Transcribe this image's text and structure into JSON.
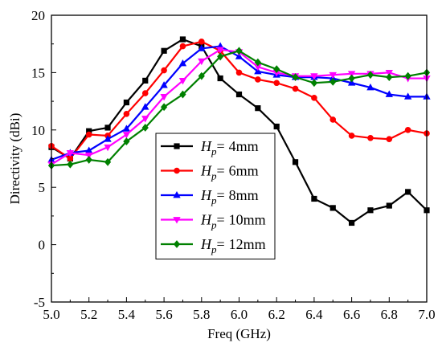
{
  "chart_data": {
    "type": "line",
    "title": "",
    "xlabel": "Freq (GHz)",
    "ylabel": "Directivity (dBi)",
    "xlim": [
      5.0,
      7.0
    ],
    "ylim": [
      -5,
      20
    ],
    "xticks": [
      "5.0",
      "5.2",
      "5.4",
      "5.6",
      "5.8",
      "6.0",
      "6.2",
      "6.4",
      "6.6",
      "6.8",
      "7.0"
    ],
    "yticks": [
      "-5",
      "0",
      "5",
      "10",
      "15",
      "20"
    ],
    "grid": false,
    "legend_position": "lower-center",
    "x": [
      5.0,
      5.1,
      5.2,
      5.3,
      5.4,
      5.5,
      5.6,
      5.7,
      5.8,
      5.9,
      6.0,
      6.1,
      6.2,
      6.3,
      6.4,
      6.5,
      6.6,
      6.7,
      6.8,
      6.9,
      7.0
    ],
    "series": [
      {
        "name": "4mm",
        "legend_var": "H",
        "legend_sub": "p",
        "legend_eq": "=",
        "color": "#000000",
        "marker": "square",
        "values": [
          8.5,
          7.5,
          9.9,
          10.2,
          12.4,
          14.3,
          16.9,
          17.9,
          17.3,
          14.5,
          13.1,
          11.9,
          10.3,
          7.2,
          4.0,
          3.2,
          1.9,
          3.0,
          3.4,
          4.6,
          3.0
        ]
      },
      {
        "name": "6mm",
        "legend_var": "H",
        "legend_sub": "p",
        "legend_eq": "=",
        "color": "#ff0000",
        "marker": "circle",
        "values": [
          8.6,
          7.5,
          9.6,
          9.5,
          11.4,
          13.2,
          15.2,
          17.3,
          17.7,
          16.9,
          15.0,
          14.4,
          14.1,
          13.6,
          12.8,
          10.9,
          9.5,
          9.3,
          9.2,
          10.0,
          9.7
        ]
      },
      {
        "name": "8mm",
        "legend_var": "H",
        "legend_sub": "p",
        "legend_eq": "=",
        "color": "#0000ff",
        "marker": "triangle-up",
        "values": [
          7.4,
          8.0,
          8.2,
          9.2,
          10.1,
          12.0,
          13.9,
          15.8,
          17.1,
          17.3,
          16.4,
          15.1,
          14.8,
          14.6,
          14.6,
          14.5,
          14.1,
          13.7,
          13.1,
          12.9,
          12.9
        ]
      },
      {
        "name": "10mm",
        "legend_var": "H",
        "legend_sub": "p",
        "legend_eq": "=",
        "color": "#ff00ff",
        "marker": "triangle-down",
        "values": [
          7.0,
          8.0,
          7.8,
          8.5,
          9.6,
          11.0,
          12.9,
          14.3,
          16.0,
          17.0,
          16.8,
          15.5,
          15.0,
          14.7,
          14.7,
          14.8,
          14.9,
          14.9,
          15.0,
          14.5,
          14.5
        ]
      },
      {
        "name": "12mm",
        "legend_var": "H",
        "legend_sub": "p",
        "legend_eq": "=",
        "color": "#008000",
        "marker": "diamond",
        "values": [
          6.9,
          7.0,
          7.4,
          7.2,
          9.0,
          10.2,
          12.0,
          13.1,
          14.7,
          16.4,
          16.9,
          15.9,
          15.3,
          14.6,
          14.1,
          14.2,
          14.5,
          14.8,
          14.6,
          14.7,
          15.0
        ]
      }
    ]
  }
}
